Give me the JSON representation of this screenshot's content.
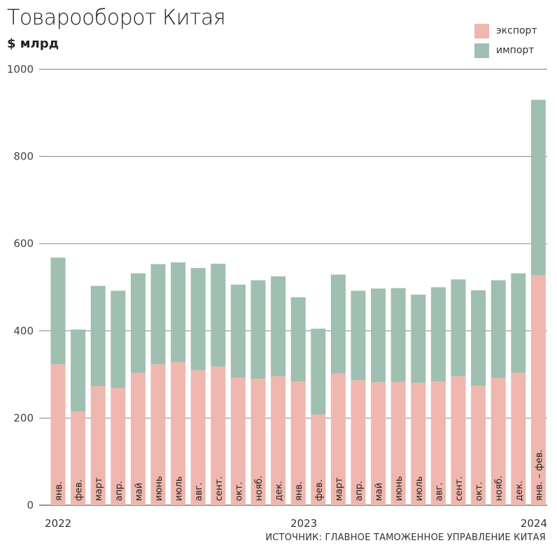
{
  "chart_data": {
    "type": "bar",
    "stacked": true,
    "title": "Товарооборот Китая",
    "subtitle": "$ млрд",
    "ylim": [
      0,
      1000
    ],
    "yticks": [
      0,
      200,
      400,
      600,
      800,
      1000
    ],
    "grid": true,
    "legend_position": "top-right",
    "categories": [
      "янв.",
      "фев.",
      "март",
      "апр.",
      "май",
      "июнь",
      "июль",
      "авг.",
      "сент.",
      "окт.",
      "нояб.",
      "дек.",
      "янв.",
      "фев.",
      "март",
      "апр.",
      "май",
      "июнь",
      "июль",
      "авг.",
      "сент.",
      "окт.",
      "нояб.",
      "дек.",
      "янв. – фев."
    ],
    "series": [
      {
        "name": "экспорт",
        "color": "#efb7ad",
        "values": [
          323,
          215,
          273,
          269,
          304,
          323,
          328,
          310,
          318,
          293,
          290,
          296,
          284,
          208,
          302,
          287,
          282,
          283,
          281,
          284,
          296,
          274,
          292,
          304,
          528
        ]
      },
      {
        "name": "импорт",
        "color": "#9fbfb1",
        "values": [
          245,
          188,
          230,
          223,
          228,
          230,
          229,
          234,
          236,
          213,
          226,
          229,
          193,
          197,
          227,
          205,
          215,
          215,
          202,
          216,
          222,
          219,
          224,
          228,
          402
        ]
      }
    ],
    "year_labels": [
      {
        "label": "2022",
        "index": 0
      },
      {
        "label": "2023",
        "index": 12
      },
      {
        "label": "2024",
        "index": 24
      }
    ]
  },
  "source": "ИСТОЧНИК: ГЛАВНОЕ ТАМОЖЕННОЕ УПРАВЛЕНИЕ КИТАЯ"
}
